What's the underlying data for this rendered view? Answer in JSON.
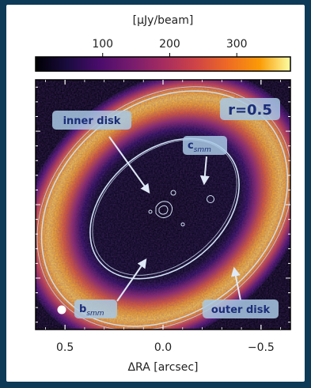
{
  "chart_data": {
    "type": "heatmap",
    "subject": "ALMA continuum image of a disk with contours",
    "colorbar": {
      "label": "[μJy/beam]",
      "ticks": [
        100,
        200,
        300
      ],
      "range": [
        0,
        380
      ],
      "colormap": "inferno",
      "position": "top"
    },
    "xaxis": {
      "label": "ΔRA [arcsec]",
      "ticks": [
        "0.5",
        "0.0",
        "−0.5"
      ],
      "tick_values": [
        0.5,
        0.0,
        -0.5
      ],
      "range": [
        0.65,
        -0.65
      ]
    },
    "yaxis": {
      "label": "",
      "ticks": [],
      "range": [
        -0.85,
        0.85
      ]
    },
    "grid": false,
    "annotations": [
      {
        "text": "r=0.5",
        "position": "top-right"
      },
      {
        "text": "inner disk",
        "position": "upper-left",
        "arrow_to": "center"
      },
      {
        "text": "c",
        "subscript": "smm",
        "position": "upper-right",
        "arrow_to": "right of center"
      },
      {
        "text": "b",
        "subscript": "smm",
        "position": "lower-left",
        "arrow_to": "inner disk edge"
      },
      {
        "text": "outer disk",
        "position": "lower-right",
        "arrow_to": "ring"
      }
    ],
    "features": {
      "ring_peak_brightness": 380,
      "cavity_brightness": 20,
      "inclined_ring": true,
      "beam_marker": "lower-left"
    }
  },
  "colors": {
    "label_fill": "#a8c8e4",
    "label_text": "#1b2d78",
    "contour": "#cfe0f5"
  }
}
